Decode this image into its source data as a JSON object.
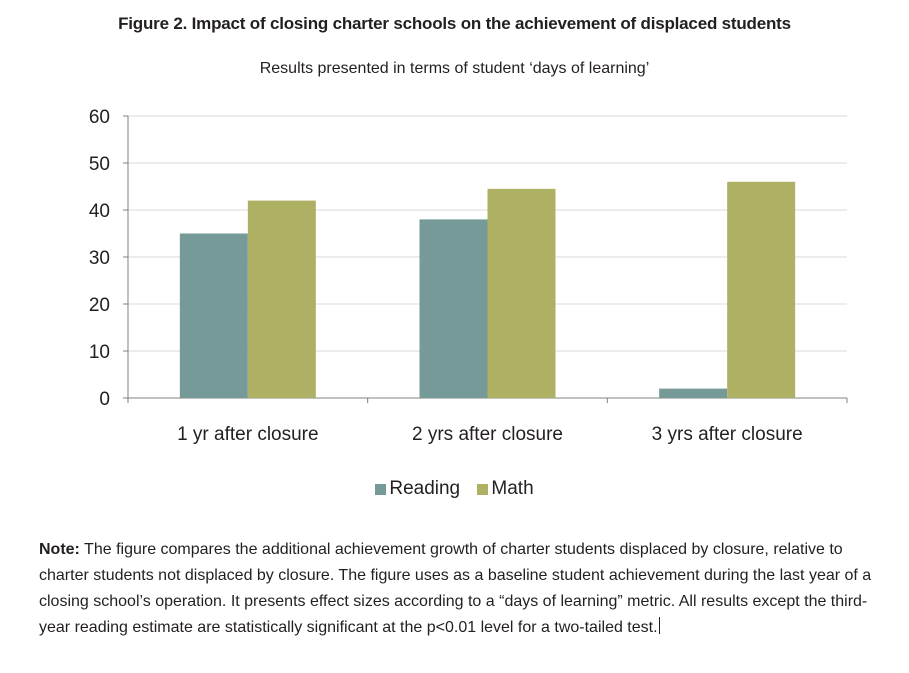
{
  "chart_data": {
    "type": "bar",
    "title": "Figure 2. Impact of closing charter schools on the achievement of displaced students",
    "subtitle": "Results presented in terms of student ‘days of learning’",
    "categories": [
      "1 yr after closure",
      "2 yrs after closure",
      "3 yrs after closure"
    ],
    "series": [
      {
        "name": "Reading",
        "values": [
          35,
          38,
          2
        ],
        "color": "#769a97"
      },
      {
        "name": "Math",
        "values": [
          42,
          44.5,
          46
        ],
        "color": "#aeb063"
      }
    ],
    "ylim": [
      0,
      60
    ],
    "yticks": [
      0,
      10,
      20,
      30,
      40,
      50,
      60
    ],
    "xlabel": "",
    "ylabel": "",
    "grid": true,
    "legend": "bottom"
  },
  "note": {
    "label": "Note:",
    "text": " The figure compares the additional achievement growth of charter students displaced by closure, relative to charter students not displaced by closure. The figure uses as a baseline student achievement during the last year of a closing school’s operation. It presents effect sizes according to a “days of learning” metric. All results except the third-year reading estimate are statistically significant at the p<0.01 level for a two-tailed test."
  }
}
